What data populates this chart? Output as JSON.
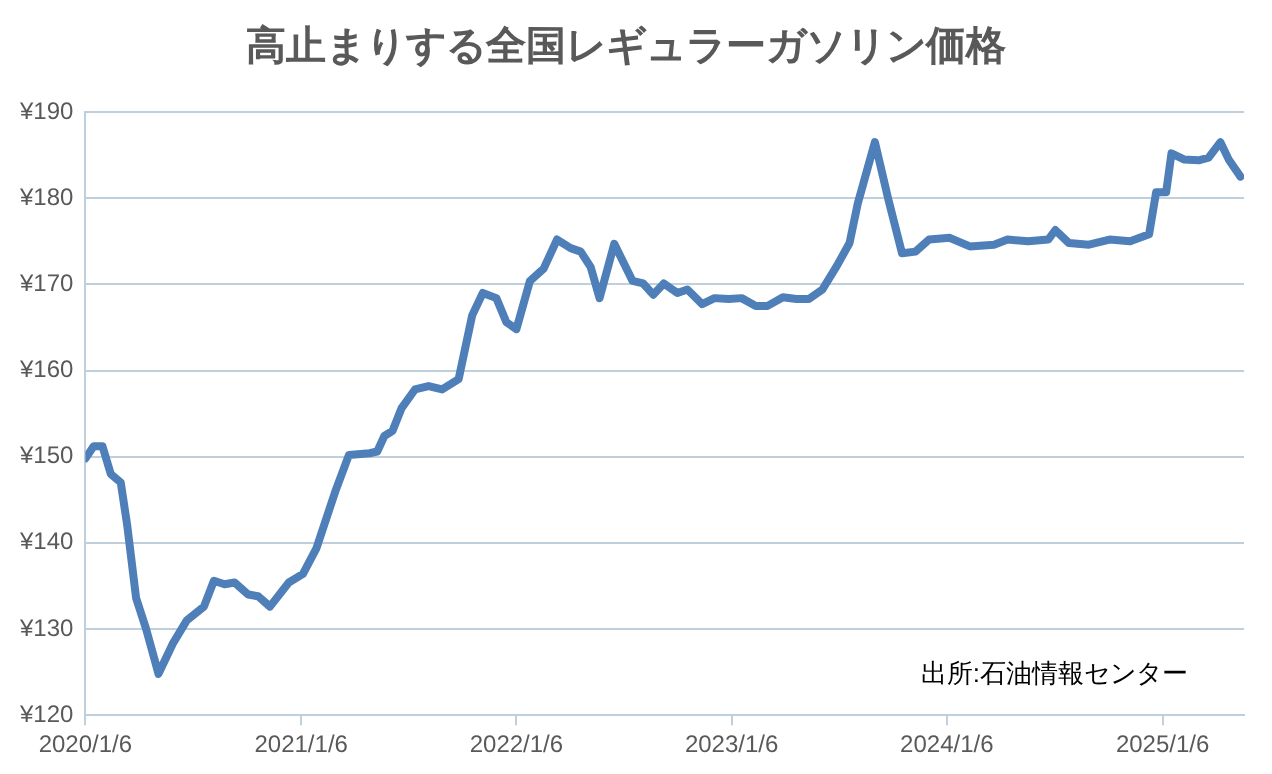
{
  "chart_data": {
    "type": "line",
    "title": "高止まりする全国レギュラーガソリン価格",
    "x": [
      "2020-01-06",
      "2020-01-20",
      "2020-02-04",
      "2020-02-18",
      "2020-03-06",
      "2020-03-17",
      "2020-04-01",
      "2020-04-18",
      "2020-05-09",
      "2020-06-03",
      "2020-06-26",
      "2020-07-25",
      "2020-08-11",
      "2020-08-29",
      "2020-09-15",
      "2020-10-08",
      "2020-10-25",
      "2020-11-14",
      "2020-12-16",
      "2021-01-09",
      "2021-02-01",
      "2021-03-05",
      "2021-03-28",
      "2021-05-02",
      "2021-05-15",
      "2021-05-27",
      "2021-06-10",
      "2021-06-25",
      "2021-07-18",
      "2021-08-10",
      "2021-09-02",
      "2021-09-30",
      "2021-10-23",
      "2021-11-10",
      "2021-12-03",
      "2021-12-20",
      "2022-01-06",
      "2022-01-29",
      "2022-02-21",
      "2022-03-16",
      "2022-04-08",
      "2022-04-25",
      "2022-05-12",
      "2022-05-27",
      "2022-06-21",
      "2022-07-22",
      "2022-08-09",
      "2022-08-26",
      "2022-09-13",
      "2022-10-06",
      "2022-10-23",
      "2022-11-17",
      "2022-12-08",
      "2023-01-01",
      "2023-01-23",
      "2023-02-16",
      "2023-03-08",
      "2023-04-03",
      "2023-04-26",
      "2023-05-17",
      "2023-06-09",
      "2023-07-04",
      "2023-07-25",
      "2023-08-08",
      "2023-09-06",
      "2023-09-29",
      "2023-10-22",
      "2023-11-14",
      "2023-12-07",
      "2024-01-11",
      "2024-02-14",
      "2024-03-26",
      "2024-04-18",
      "2024-05-23",
      "2024-06-26",
      "2024-07-08",
      "2024-07-31",
      "2024-09-03",
      "2024-10-08",
      "2024-11-12",
      "2024-12-14",
      "2024-12-26",
      "2025-01-12",
      "2025-01-21",
      "2025-02-11",
      "2025-03-08",
      "2025-03-25",
      "2025-04-14",
      "2025-04-28",
      "2025-05-18"
    ],
    "series": [
      {
        "color": "#4f7fb8",
        "values": [
          149.8,
          151.2,
          151.2,
          148.0,
          147.0,
          142.0,
          133.6,
          130.0,
          124.8,
          128.4,
          131.0,
          132.6,
          135.6,
          135.2,
          135.4,
          134.0,
          133.8,
          132.6,
          135.4,
          136.4,
          139.4,
          146.0,
          150.2,
          150.4,
          150.6,
          152.4,
          153.0,
          155.6,
          157.8,
          158.2,
          157.8,
          159.0,
          166.4,
          169.0,
          168.4,
          165.6,
          164.8,
          170.4,
          171.8,
          175.2,
          174.2,
          173.8,
          172.0,
          168.4,
          174.7,
          170.4,
          170.1,
          168.8,
          170.1,
          169.0,
          169.4,
          167.7,
          168.4,
          168.3,
          168.4,
          167.5,
          167.5,
          168.5,
          168.3,
          168.3,
          169.4,
          172.2,
          174.8,
          179.4,
          186.5,
          179.8,
          173.6,
          173.8,
          175.2,
          175.4,
          174.4,
          174.6,
          175.2,
          175.0,
          175.2,
          176.3,
          174.8,
          174.6,
          175.2,
          175.0,
          175.8,
          180.7,
          180.7,
          185.2,
          184.5,
          184.4,
          184.7,
          186.5,
          184.5,
          182.5
        ]
      }
    ],
    "xlim": [
      "2020-01-06",
      "2025-05-24"
    ],
    "xticks": [
      {
        "value": "2020-01-06",
        "label": "2020/1/6"
      },
      {
        "value": "2021-01-06",
        "label": "2021/1/6"
      },
      {
        "value": "2022-01-06",
        "label": "2022/1/6"
      },
      {
        "value": "2023-01-06",
        "label": "2023/1/6"
      },
      {
        "value": "2024-01-06",
        "label": "2024/1/6"
      },
      {
        "value": "2025-01-06",
        "label": "2025/1/6"
      }
    ],
    "ylim": [
      120,
      190
    ],
    "yticks": [
      {
        "value": 120,
        "label": "¥120"
      },
      {
        "value": 130,
        "label": "¥130"
      },
      {
        "value": 140,
        "label": "¥140"
      },
      {
        "value": 150,
        "label": "¥150"
      },
      {
        "value": 160,
        "label": "¥160"
      },
      {
        "value": 170,
        "label": "¥170"
      },
      {
        "value": 180,
        "label": "¥180"
      },
      {
        "value": 190,
        "label": "¥190"
      }
    ],
    "grid": "y",
    "legend": false,
    "marker": "none",
    "line_style": "solid",
    "annotations": [
      "出所:石油情報センター"
    ]
  }
}
